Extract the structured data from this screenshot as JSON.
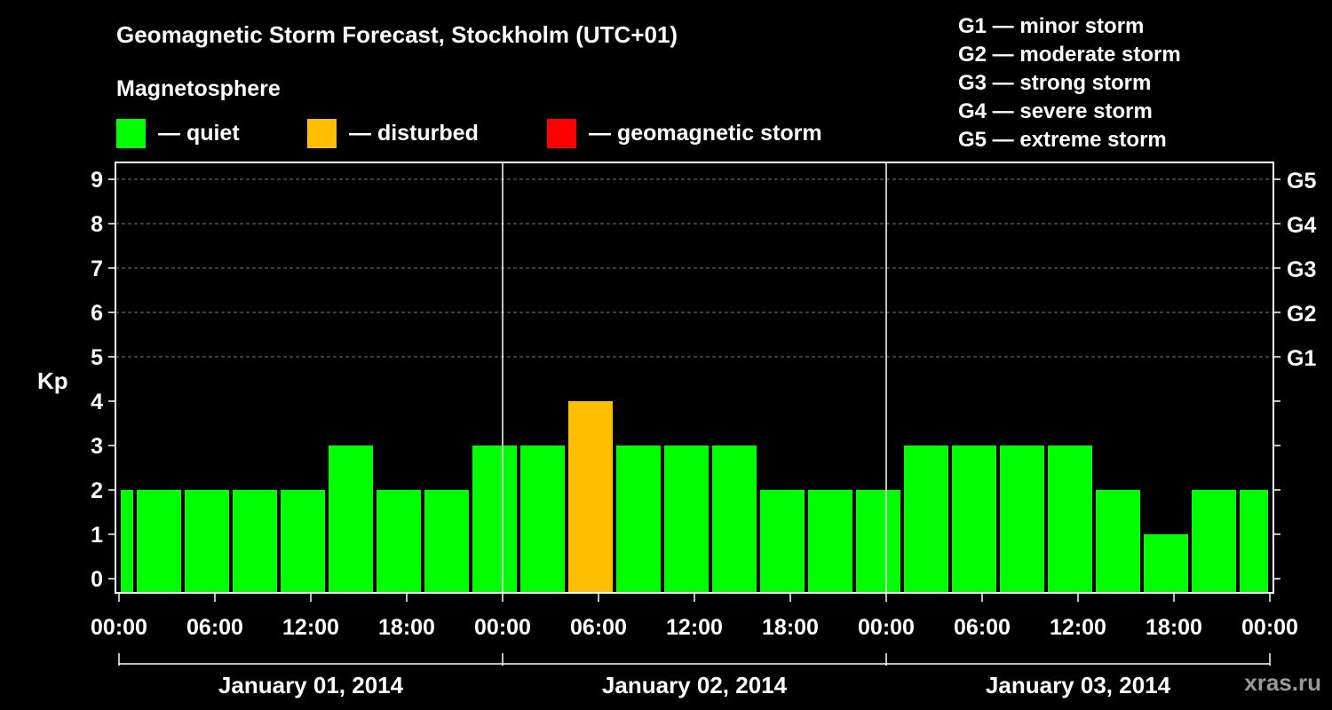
{
  "title": "Geomagnetic Storm Forecast, Stockholm (UTC+01)",
  "magnetosphere_label": "Magnetosphere",
  "legend": [
    {
      "label": "— quiet",
      "color": "#00ff00"
    },
    {
      "label": "— disturbed",
      "color": "#ffbf00"
    },
    {
      "label": "— geomagnetic storm",
      "color": "#ff0000"
    }
  ],
  "storm_scale": [
    "G1 — minor storm",
    "G2 — moderate storm",
    "G3 — strong storm",
    "G4 — severe storm",
    "G5 — extreme storm"
  ],
  "watermark": "xras.ru",
  "chart_data": {
    "type": "bar",
    "ylabel": "Kp",
    "ylim": [
      0,
      9
    ],
    "yticks": [
      "0",
      "1",
      "2",
      "3",
      "4",
      "5",
      "6",
      "7",
      "8",
      "9"
    ],
    "right_axis_labels": [
      {
        "kp": 5,
        "label": "G1"
      },
      {
        "kp": 6,
        "label": "G2"
      },
      {
        "kp": 7,
        "label": "G3"
      },
      {
        "kp": 8,
        "label": "G4"
      },
      {
        "kp": 9,
        "label": "G5"
      }
    ],
    "x_range_hours": [
      0,
      72
    ],
    "xtick_hours": [
      0,
      6,
      12,
      18,
      24,
      30,
      36,
      42,
      48,
      54,
      60,
      66,
      72
    ],
    "xtick_labels": [
      "00:00",
      "06:00",
      "12:00",
      "18:00",
      "00:00",
      "06:00",
      "12:00",
      "18:00",
      "00:00",
      "06:00",
      "12:00",
      "18:00",
      "00:00"
    ],
    "day_labels": [
      "January 01, 2014",
      "January 02, 2014",
      "January 03, 2014"
    ],
    "day_boundaries_hours": [
      24,
      48
    ],
    "bar_start_hours": [
      0,
      1,
      4,
      7,
      10,
      13,
      16,
      19,
      22,
      25,
      28,
      31,
      34,
      37,
      40,
      43,
      46,
      49,
      52,
      55,
      58,
      61,
      64,
      67,
      70
    ],
    "bar_end_hours": [
      1,
      4,
      7,
      10,
      13,
      16,
      19,
      22,
      25,
      28,
      31,
      34,
      37,
      40,
      43,
      46,
      49,
      52,
      55,
      58,
      61,
      64,
      67,
      70,
      72
    ],
    "values": [
      2,
      2,
      2,
      2,
      2,
      3,
      2,
      2,
      3,
      3,
      4,
      3,
      3,
      3,
      2,
      2,
      2,
      3,
      3,
      3,
      3,
      2,
      1,
      2,
      2
    ],
    "grid": "dashed at Kp 5-9",
    "colors": {
      "quiet": "#00ff00",
      "disturbed": "#ffbf00",
      "storm": "#ff0000"
    }
  }
}
